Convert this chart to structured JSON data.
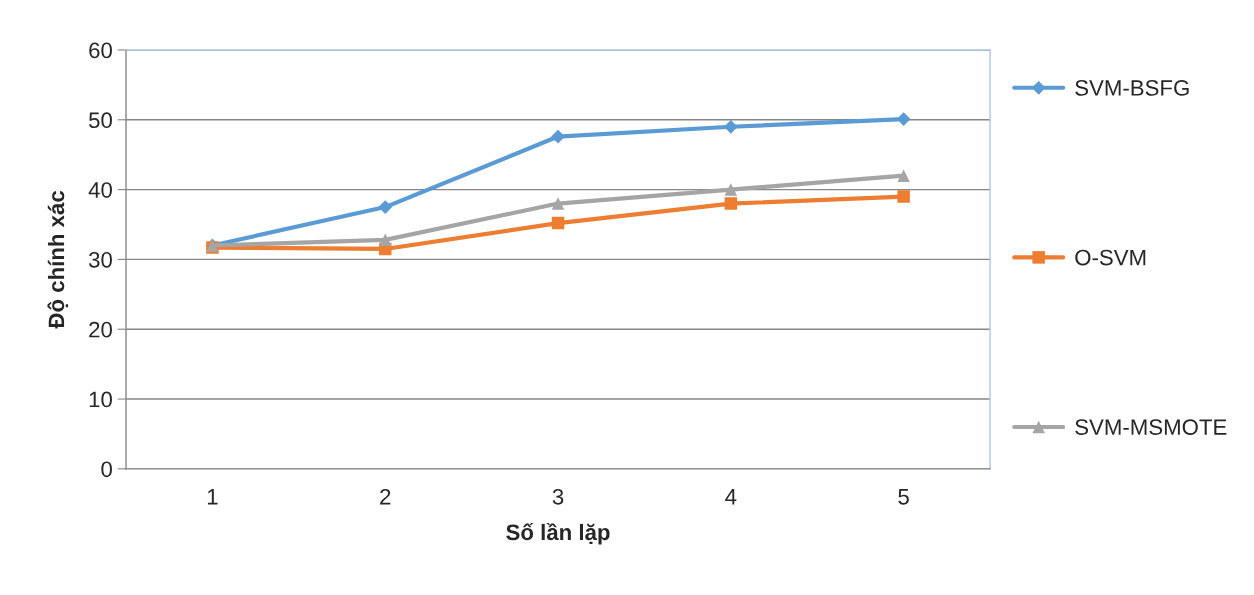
{
  "chart_data": {
    "type": "line",
    "xlabel": "Số lần lặp",
    "ylabel": "Độ chính xác",
    "categories": [
      "1",
      "2",
      "3",
      "4",
      "5"
    ],
    "series": [
      {
        "name": "SVM-BSFG",
        "color": "#5b9bd5",
        "marker": "diamond",
        "values": [
          32,
          37.5,
          47.6,
          49,
          50.1
        ]
      },
      {
        "name": "O-SVM",
        "color": "#ed7d31",
        "marker": "square",
        "values": [
          31.7,
          31.5,
          35.2,
          38,
          39
        ]
      },
      {
        "name": "SVM-MSMOTE",
        "color": "#a5a5a5",
        "marker": "triangle",
        "values": [
          32,
          32.8,
          38,
          40,
          42
        ]
      }
    ],
    "ylim": [
      0,
      60
    ],
    "yticks": [
      0,
      10,
      20,
      30,
      40,
      50,
      60
    ],
    "grid": "y",
    "legend": "right"
  }
}
